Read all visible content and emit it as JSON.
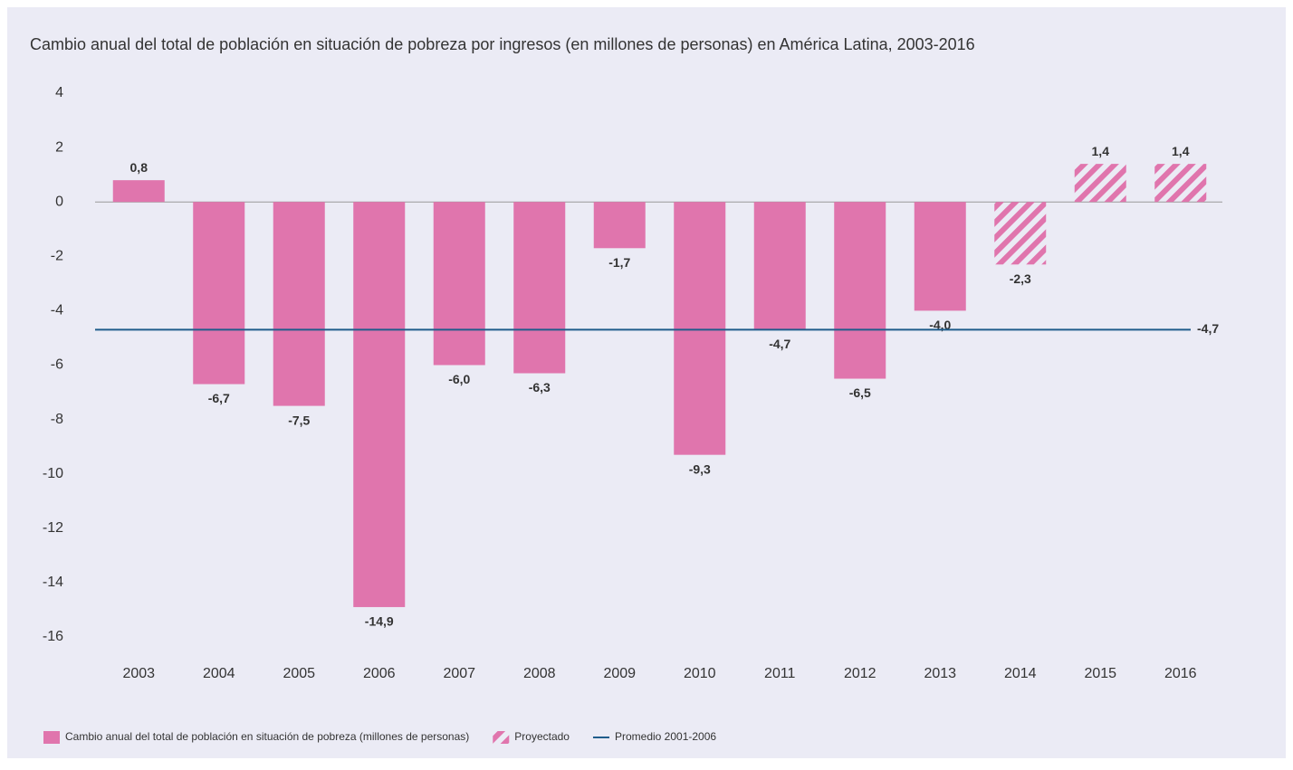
{
  "chart_data": {
    "type": "bar",
    "title": "Cambio anual del total de población en situación de pobreza por ingresos (en millones de personas) en América Latina, 2003-2016",
    "categories": [
      "2003",
      "2004",
      "2005",
      "2006",
      "2007",
      "2008",
      "2009",
      "2010",
      "2011",
      "2012",
      "2013",
      "2014",
      "2015",
      "2016"
    ],
    "series": [
      {
        "name": "Cambio anual del total de población en situación de pobreza (millones de personas)",
        "color": "#e075ad",
        "pattern": "solid",
        "values": [
          0.8,
          -6.7,
          -7.5,
          -14.9,
          -6.0,
          -6.3,
          -1.7,
          -9.3,
          -4.7,
          -6.5,
          -4.0,
          null,
          null,
          null
        ],
        "value_labels": [
          "0,8",
          "-6,7",
          "-7,5",
          "-14,9",
          "-6,0",
          "-6,3",
          "-1,7",
          "-9,3",
          "-4,7",
          "-6,5",
          "-4,0",
          null,
          null,
          null
        ]
      },
      {
        "name": "Proyectado",
        "color": "#e075ad",
        "pattern": "hatched",
        "values": [
          null,
          null,
          null,
          null,
          null,
          null,
          null,
          null,
          null,
          null,
          null,
          -2.3,
          1.4,
          1.4
        ],
        "value_labels": [
          null,
          null,
          null,
          null,
          null,
          null,
          null,
          null,
          null,
          null,
          null,
          "-2,3",
          "1,4",
          "1,4"
        ]
      }
    ],
    "reference_line": {
      "name": "Promedio 2001-2006",
      "value": -4.7,
      "label": "-4,7",
      "color": "#1f5c8b"
    },
    "ylim": [
      -16,
      4
    ],
    "yticks": [
      4,
      2,
      0,
      -2,
      -4,
      -6,
      -8,
      -10,
      -12,
      -14,
      -16
    ],
    "grid": false,
    "legend": "bottom-left"
  }
}
